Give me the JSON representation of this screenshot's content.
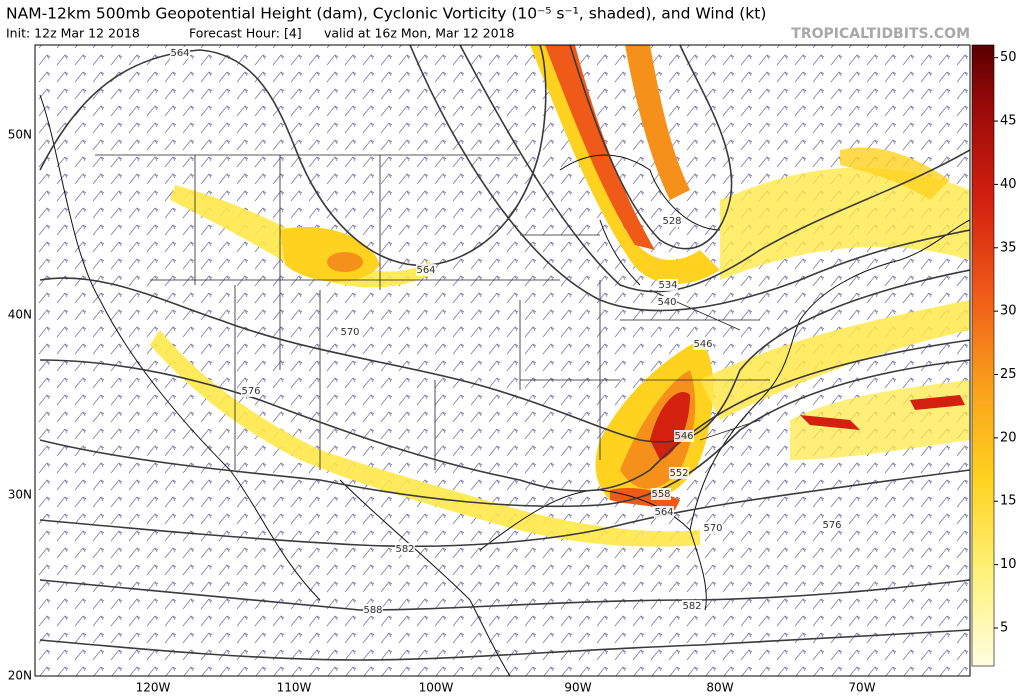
{
  "header": {
    "title": "NAM-12km 500mb Geopotential Height (dam), Cyclonic Vorticity (10⁻⁵ s⁻¹, shaded), and Wind (kt)",
    "init": "Init: 12z Mar 12 2018",
    "forecast_hour": "Forecast Hour: [4]",
    "valid": "valid at 16z Mon, Mar 12 2018",
    "credit": "TROPICALTIDBITS.COM"
  },
  "map": {
    "lat_labels": [
      "50N",
      "40N",
      "30N",
      "20N"
    ],
    "lon_labels": [
      "120W",
      "110W",
      "100W",
      "90W",
      "80W",
      "70W"
    ],
    "contour_labels": [
      "564",
      "528",
      "534",
      "540",
      "546",
      "564",
      "570",
      "576",
      "546",
      "552",
      "558",
      "564",
      "570",
      "576",
      "582",
      "582",
      "588"
    ]
  },
  "colorbar": {
    "lim": [
      2,
      51
    ],
    "ticks": [
      5,
      10,
      15,
      20,
      25,
      30,
      35,
      40,
      45,
      50
    ]
  }
}
